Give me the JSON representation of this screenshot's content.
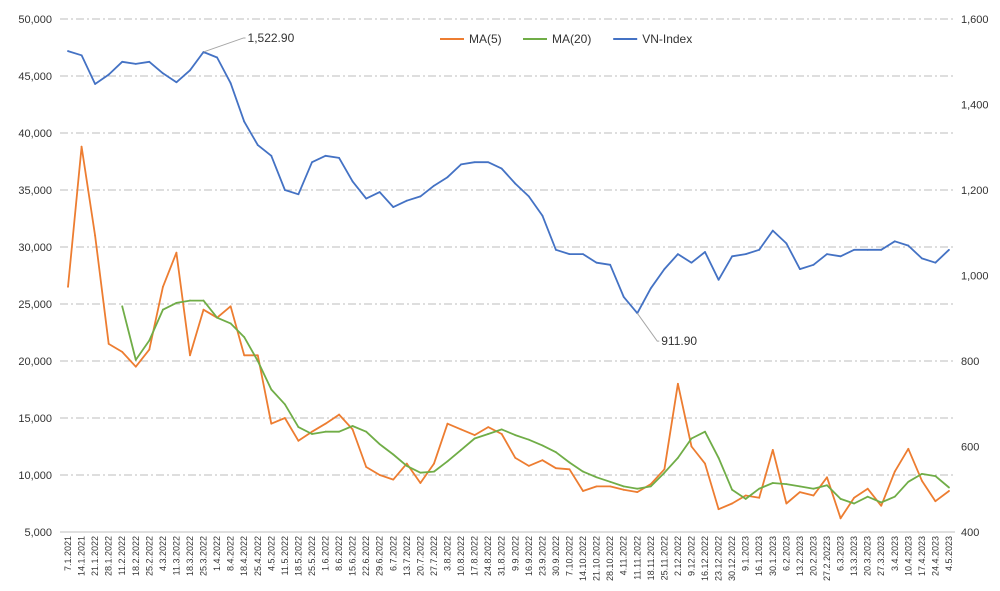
{
  "chart_data": {
    "type": "line",
    "title": "",
    "xlabel": "",
    "ylabel_left": "",
    "ylabel_right": "",
    "ylim_left": [
      5000,
      50000
    ],
    "ylim_right": [
      400,
      1600
    ],
    "left_ticks": [
      "5,000",
      "10,000",
      "15,000",
      "20,000",
      "25,000",
      "30,000",
      "35,000",
      "40,000",
      "45,000",
      "50,000"
    ],
    "right_ticks": [
      "400",
      "600",
      "800",
      "1,000",
      "1,200",
      "1,400",
      "1,600"
    ],
    "grid": true,
    "legend_position": "top-center",
    "categories": [
      "7.1.2021",
      "14.1.2021",
      "21.1.2022",
      "28.1.2022",
      "11.2.2022",
      "18.2.2022",
      "25.2.2022",
      "4.3.2022",
      "11.3.2022",
      "18.3.2022",
      "25.3.2022",
      "1.4.2022",
      "8.4.2022",
      "18.4.2022",
      "25.4.2022",
      "4.5.2022",
      "11.5.2022",
      "18.5.2022",
      "25.5.2022",
      "1.6.2022",
      "8.6.2022",
      "15.6.2022",
      "22.6.2022",
      "29.6.2022",
      "6.7.2022",
      "13.7.2022",
      "20.7.2022",
      "27.7.2022",
      "3.8.2022",
      "10.8.2022",
      "17.8.2022",
      "24.8.2022",
      "31.8.2022",
      "9.9.2022",
      "16.9.2022",
      "23.9.2022",
      "30.9.2022",
      "7.10.2022",
      "14.10.2022",
      "21.10.2022",
      "28.10.2022",
      "4.11.2022",
      "11.11.2022",
      "18.11.2022",
      "25.11.2022",
      "2.12.2022",
      "9.12.2022",
      "16.12.2022",
      "23.12.2022",
      "30.12.2022",
      "9.1.2023",
      "16.1.2023",
      "30.1.2023",
      "6.2.2023",
      "13.2.2023",
      "20.2.2023",
      "27.2.20223",
      "6.3.2023",
      "13.3.2023",
      "20.3.2023",
      "27.3.2023",
      "3.4.2023",
      "10.4.2023",
      "17.4.2023",
      "24.4.2023",
      "4.5.2023"
    ],
    "series": [
      {
        "name": "MA(5)",
        "axis": "left",
        "color": "#ED7D31",
        "values": [
          26500,
          38800,
          31000,
          21500,
          20800,
          19500,
          21000,
          26500,
          29500,
          20500,
          24500,
          23800,
          24800,
          20500,
          20500,
          14500,
          15000,
          13000,
          13800,
          14500,
          15300,
          14000,
          10700,
          10000,
          9600,
          11000,
          9300,
          11000,
          14500,
          14000,
          13500,
          14200,
          13600,
          11500,
          10800,
          11300,
          10600,
          10500,
          8600,
          9000,
          9000,
          8700,
          8500,
          9200,
          10500,
          18000,
          12500,
          11000,
          7000,
          7500,
          8200,
          8000,
          12200,
          7500,
          8500,
          8200,
          9800,
          6200,
          8000,
          8800,
          7300,
          10300,
          12300,
          9500,
          7700,
          8600
        ]
      },
      {
        "name": "MA(20)",
        "axis": "left",
        "color": "#70AD47",
        "values": [
          null,
          null,
          null,
          null,
          24800,
          20100,
          21800,
          24500,
          25100,
          25300,
          25300,
          23800,
          23300,
          22100,
          20000,
          17500,
          16200,
          14200,
          13600,
          13800,
          13800,
          14300,
          13800,
          12700,
          11800,
          10800,
          10200,
          10300,
          11200,
          12200,
          13200,
          13600,
          14000,
          13500,
          13100,
          12600,
          12000,
          11100,
          10300,
          9800,
          9400,
          9000,
          8800,
          9000,
          10200,
          11500,
          13200,
          13800,
          11500,
          8700,
          7900,
          8800,
          9300,
          9200,
          9000,
          8800,
          9100,
          7900,
          7500,
          8100,
          7600,
          8100,
          9400,
          10100,
          9900,
          8900
        ]
      },
      {
        "name": "VN-Index",
        "axis": "right",
        "color": "#4472C4",
        "values": [
          1525,
          1515,
          1448,
          1470,
          1500,
          1495,
          1500,
          1473,
          1452,
          1480,
          1522.9,
          1510,
          1450,
          1360,
          1305,
          1280,
          1200,
          1190,
          1265,
          1280,
          1275,
          1220,
          1180,
          1195,
          1160,
          1175,
          1185,
          1210,
          1230,
          1260,
          1265,
          1265,
          1250,
          1215,
          1185,
          1140,
          1060,
          1050,
          1050,
          1030,
          1025,
          950,
          911.9,
          970,
          1015,
          1050,
          1030,
          1055,
          990,
          1045,
          1050,
          1060,
          1105,
          1075,
          1015,
          1025,
          1050,
          1045,
          1060,
          1060,
          1060,
          1080,
          1070,
          1040,
          1030,
          1060
        ],
        "annotations": [
          {
            "label": "1,522.90",
            "value": 1522.9
          },
          {
            "label": "911.90",
            "value": 911.9
          }
        ]
      }
    ]
  }
}
